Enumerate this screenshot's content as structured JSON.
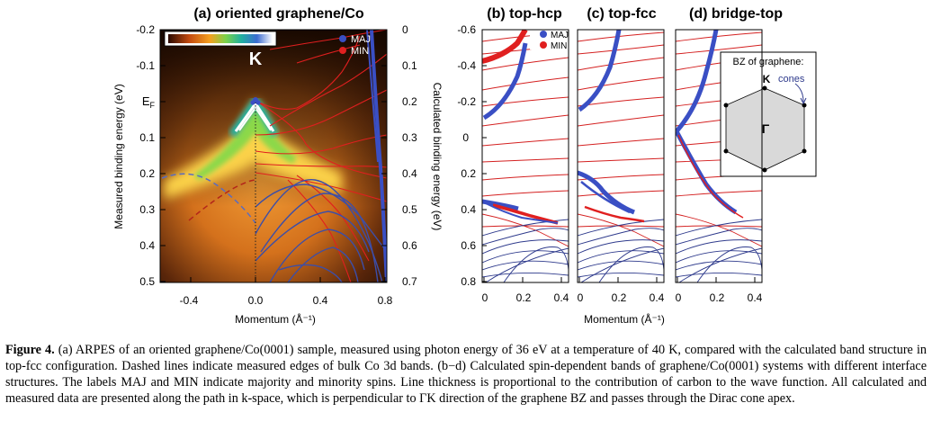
{
  "panels": {
    "a": {
      "title": "(a) oriented graphene/Co",
      "ylabel_left": "Measured binding energy (eV)",
      "ylabel_right": "Calculated binding energy (eV)",
      "xlabel": "Momentum (Å⁻¹)",
      "left_ticks": [
        "-0.2",
        "-0.1",
        "E",
        "0.1",
        "0.2",
        "0.3",
        "0.4",
        "0.5"
      ],
      "ef_label": "E",
      "ef_sub": "F",
      "right_ticks": [
        "0",
        "0.1",
        "0.2",
        "0.3",
        "0.4",
        "0.5",
        "0.6",
        "0.7"
      ],
      "x_ticks": [
        "-0.4",
        "0.0",
        "0.4",
        "0.8"
      ],
      "k_label": "K",
      "legend": [
        "MAJ",
        "MIN"
      ]
    },
    "b": {
      "title": "(b) top-hcp",
      "legend": [
        "MAJ",
        "MIN"
      ]
    },
    "c": {
      "title": "(c) top-fcc"
    },
    "d": {
      "title": "(d) bridge-top",
      "bz_title": "BZ of graphene:",
      "bz_k": "K",
      "bz_cones": "cones",
      "bz_gamma": "Γ"
    },
    "shared": {
      "y_ticks": [
        "-0.6",
        "-0.4",
        "-0.2",
        "0",
        "0.2",
        "0.4",
        "0.6",
        "0.8"
      ],
      "x_ticks": [
        "0",
        "0.2",
        "0.4"
      ],
      "xlabel": "Momentum (Å⁻¹)"
    }
  },
  "colors": {
    "maj": "#3a4fc4",
    "min": "#e02020",
    "thin_maj": "#2e3a8c",
    "thin_min": "#cc1f1f"
  },
  "caption": {
    "label": "Figure 4.",
    "text": " (a) ARPES of an oriented graphene/Co(0001) sample, measured using photon energy of 36 eV at a temperature of 40 K, compared with the calculated band structure in top-fcc configuration. Dashed lines indicate measured edges of bulk Co 3d bands. (b−d) Calculated spin-dependent bands of graphene/Co(0001) systems with different interface structures. The labels MAJ and MIN indicate majority and minority spins. Line thickness is proportional to the contribution of carbon to the wave function. All calculated and measured data are presented along the path in k-space, which is perpendicular to ΓK direction of the graphene BZ and passes through the Dirac cone apex."
  }
}
